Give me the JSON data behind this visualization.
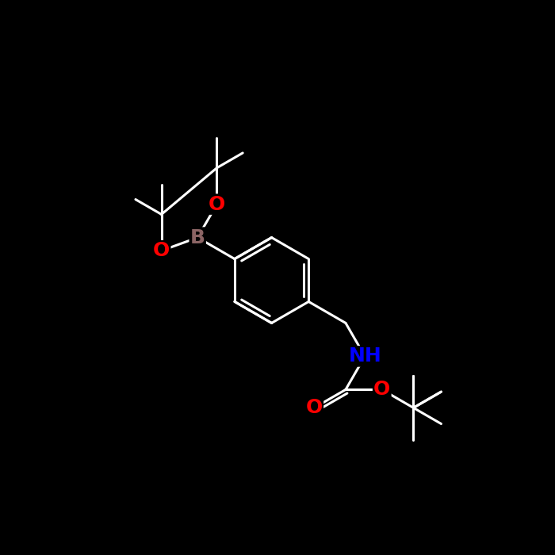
{
  "background_color": "#000000",
  "bond_color": "#ffffff",
  "atom_colors": {
    "O": "#ff0000",
    "B": "#8b6464",
    "N": "#0000ff",
    "C": "#ffffff",
    "H": "#ffffff"
  },
  "bond_width": 2.2,
  "font_size_atom": 18,
  "fig_size": [
    7.0,
    7.0
  ],
  "dpi": 100,
  "xlim": [
    0,
    10
  ],
  "ylim": [
    0,
    10
  ]
}
